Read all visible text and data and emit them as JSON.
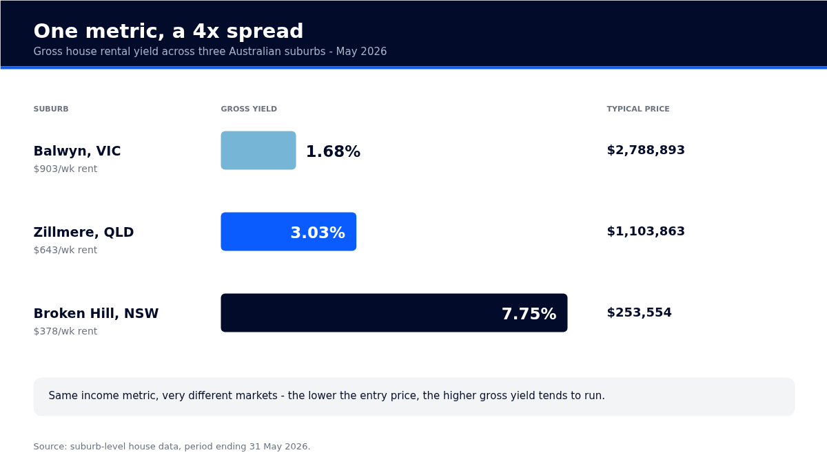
{
  "chart_data": {
    "type": "bar",
    "orientation": "horizontal",
    "title": "One metric, a 4x spread",
    "subtitle": "Gross house rental yield across three Australian suburbs - May 2026",
    "ylabel": "SUBURB",
    "xlabel": "GROSS YIELD",
    "categories": [
      "Balwyn, VIC",
      "Zillmere, QLD",
      "Broken Hill, NSW"
    ],
    "values": [
      1.68,
      3.03,
      7.75
    ],
    "value_labels": [
      "1.68%",
      "3.03%",
      "7.75%"
    ],
    "colors": [
      "#76b5d6",
      "#0a5cff",
      "#020b2a"
    ],
    "annotations": [
      "TYPICAL PRICE",
      "Same income metric, very different markets - the lower the entry price, the higher gross yield tends to run.",
      "Source: suburb-level house data, period ending 31 May 2026.",
      "$903/wk rent",
      "$2,788,893",
      "$643/wk rent",
      "$1,103,863",
      "$378/wk rent",
      "$253,554"
    ]
  }
}
